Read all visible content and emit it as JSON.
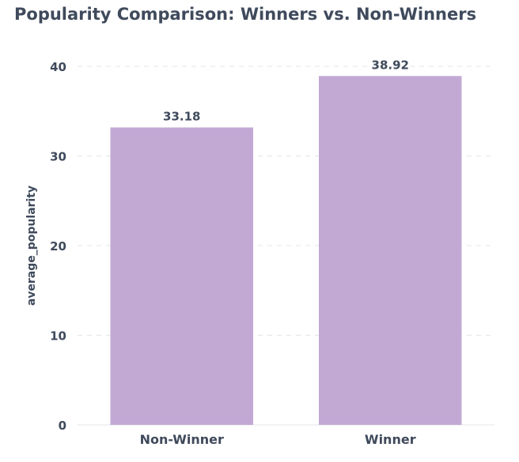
{
  "chart_data": {
    "type": "bar",
    "title": "Popularity Comparison: Winners vs. Non-Winners",
    "xlabel": "",
    "ylabel": "average_popularity",
    "categories": [
      "Non-Winner",
      "Winner"
    ],
    "values": [
      33.18,
      38.92
    ],
    "data_labels": [
      "33.18",
      "38.92"
    ],
    "yticks": [
      0,
      10,
      20,
      30,
      40
    ],
    "ylim": [
      0,
      40
    ],
    "grid": true,
    "bar_color": "#c2a9d4"
  }
}
